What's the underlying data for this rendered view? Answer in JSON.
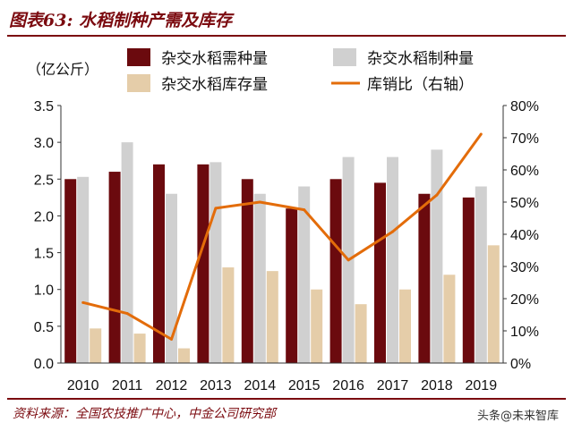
{
  "figure": {
    "title": "图表63: 水稻制种产需及库存",
    "source": "资料来源：全国农技推广中心，中金公司研究部",
    "watermark": "头条@未来智库"
  },
  "chart_data": {
    "type": "bar",
    "categories": [
      "2010",
      "2011",
      "2012",
      "2013",
      "2014",
      "2015",
      "2016",
      "2017",
      "2018",
      "2019"
    ],
    "ylabel": "（亿公斤）",
    "ylim": [
      0,
      3.5
    ],
    "yticks": [
      "0.0",
      "0.5",
      "1.0",
      "1.5",
      "2.0",
      "2.5",
      "3.0",
      "3.5"
    ],
    "y2lim": [
      0,
      80
    ],
    "y2ticks": [
      "0%",
      "10%",
      "20%",
      "30%",
      "40%",
      "50%",
      "60%",
      "70%",
      "80%"
    ],
    "series": [
      {
        "name": "杂交水稻需种量",
        "type": "bar",
        "color": "#6b0a0e",
        "values": [
          2.5,
          2.6,
          2.7,
          2.7,
          2.5,
          2.1,
          2.5,
          2.45,
          2.3,
          2.25
        ]
      },
      {
        "name": "杂交水稻制种量",
        "type": "bar",
        "color": "#d0d0d0",
        "values": [
          2.53,
          3.0,
          2.3,
          2.73,
          2.3,
          2.4,
          2.8,
          2.8,
          2.9,
          2.4
        ]
      },
      {
        "name": "杂交水稻库存量",
        "type": "bar",
        "color": "#e5cda9",
        "values": [
          0.47,
          0.4,
          0.2,
          1.3,
          1.25,
          1.0,
          0.8,
          1.0,
          1.2,
          1.6
        ]
      },
      {
        "name": "库销比（右轴）",
        "type": "line",
        "axis": "right",
        "color": "#e36c0a",
        "values": [
          18.8,
          15.4,
          7.4,
          48.1,
          50.0,
          47.6,
          32.0,
          40.8,
          52.2,
          71.1
        ]
      }
    ],
    "legend_position": "top"
  }
}
